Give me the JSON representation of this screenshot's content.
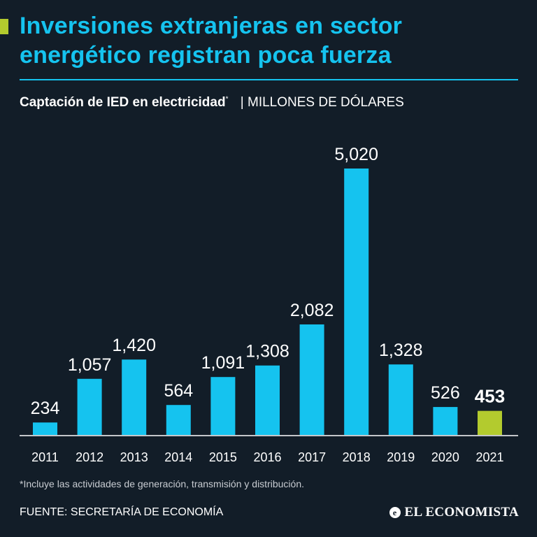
{
  "header": {
    "title_line1": "Inversiones extranjeras en sector",
    "title_line2": "energético registran poca fuerza",
    "subtitle_bold": "Captación de IED en electricidad",
    "subtitle_mark": "*",
    "subtitle_unit": "| MILLONES DE DÓLARES"
  },
  "colors": {
    "background": "#121d28",
    "title": "#15c3ef",
    "bar": "#15c3ef",
    "highlight": "#b3cb2e",
    "text": "#ffffff"
  },
  "chart_data": {
    "type": "bar",
    "title": "Captación de IED en electricidad",
    "ylabel": "MILLONES DE DÓLARES",
    "xlabel": "",
    "categories": [
      "2011",
      "2012",
      "2013",
      "2014",
      "2015",
      "2016",
      "2017",
      "2018",
      "2019",
      "2020",
      "2021"
    ],
    "values": [
      234,
      1057,
      1420,
      564,
      1091,
      1308,
      2082,
      5020,
      1328,
      526,
      453
    ],
    "value_labels": [
      "234",
      "1,057",
      "1,420",
      "564",
      "1,091",
      "1,308",
      "2,082",
      "5,020",
      "1,328",
      "526",
      "453"
    ],
    "highlight_index": 10,
    "ylim": [
      0,
      5020
    ],
    "grid": false,
    "legend": "none"
  },
  "footer": {
    "footnote": "*Incluye las actividades de generación, transmisión y distribución.",
    "source": "FUENTE: SECRETARÍA DE ECONOMÍA",
    "brand_icon": "e",
    "brand": "EL ECONOMISTA"
  }
}
